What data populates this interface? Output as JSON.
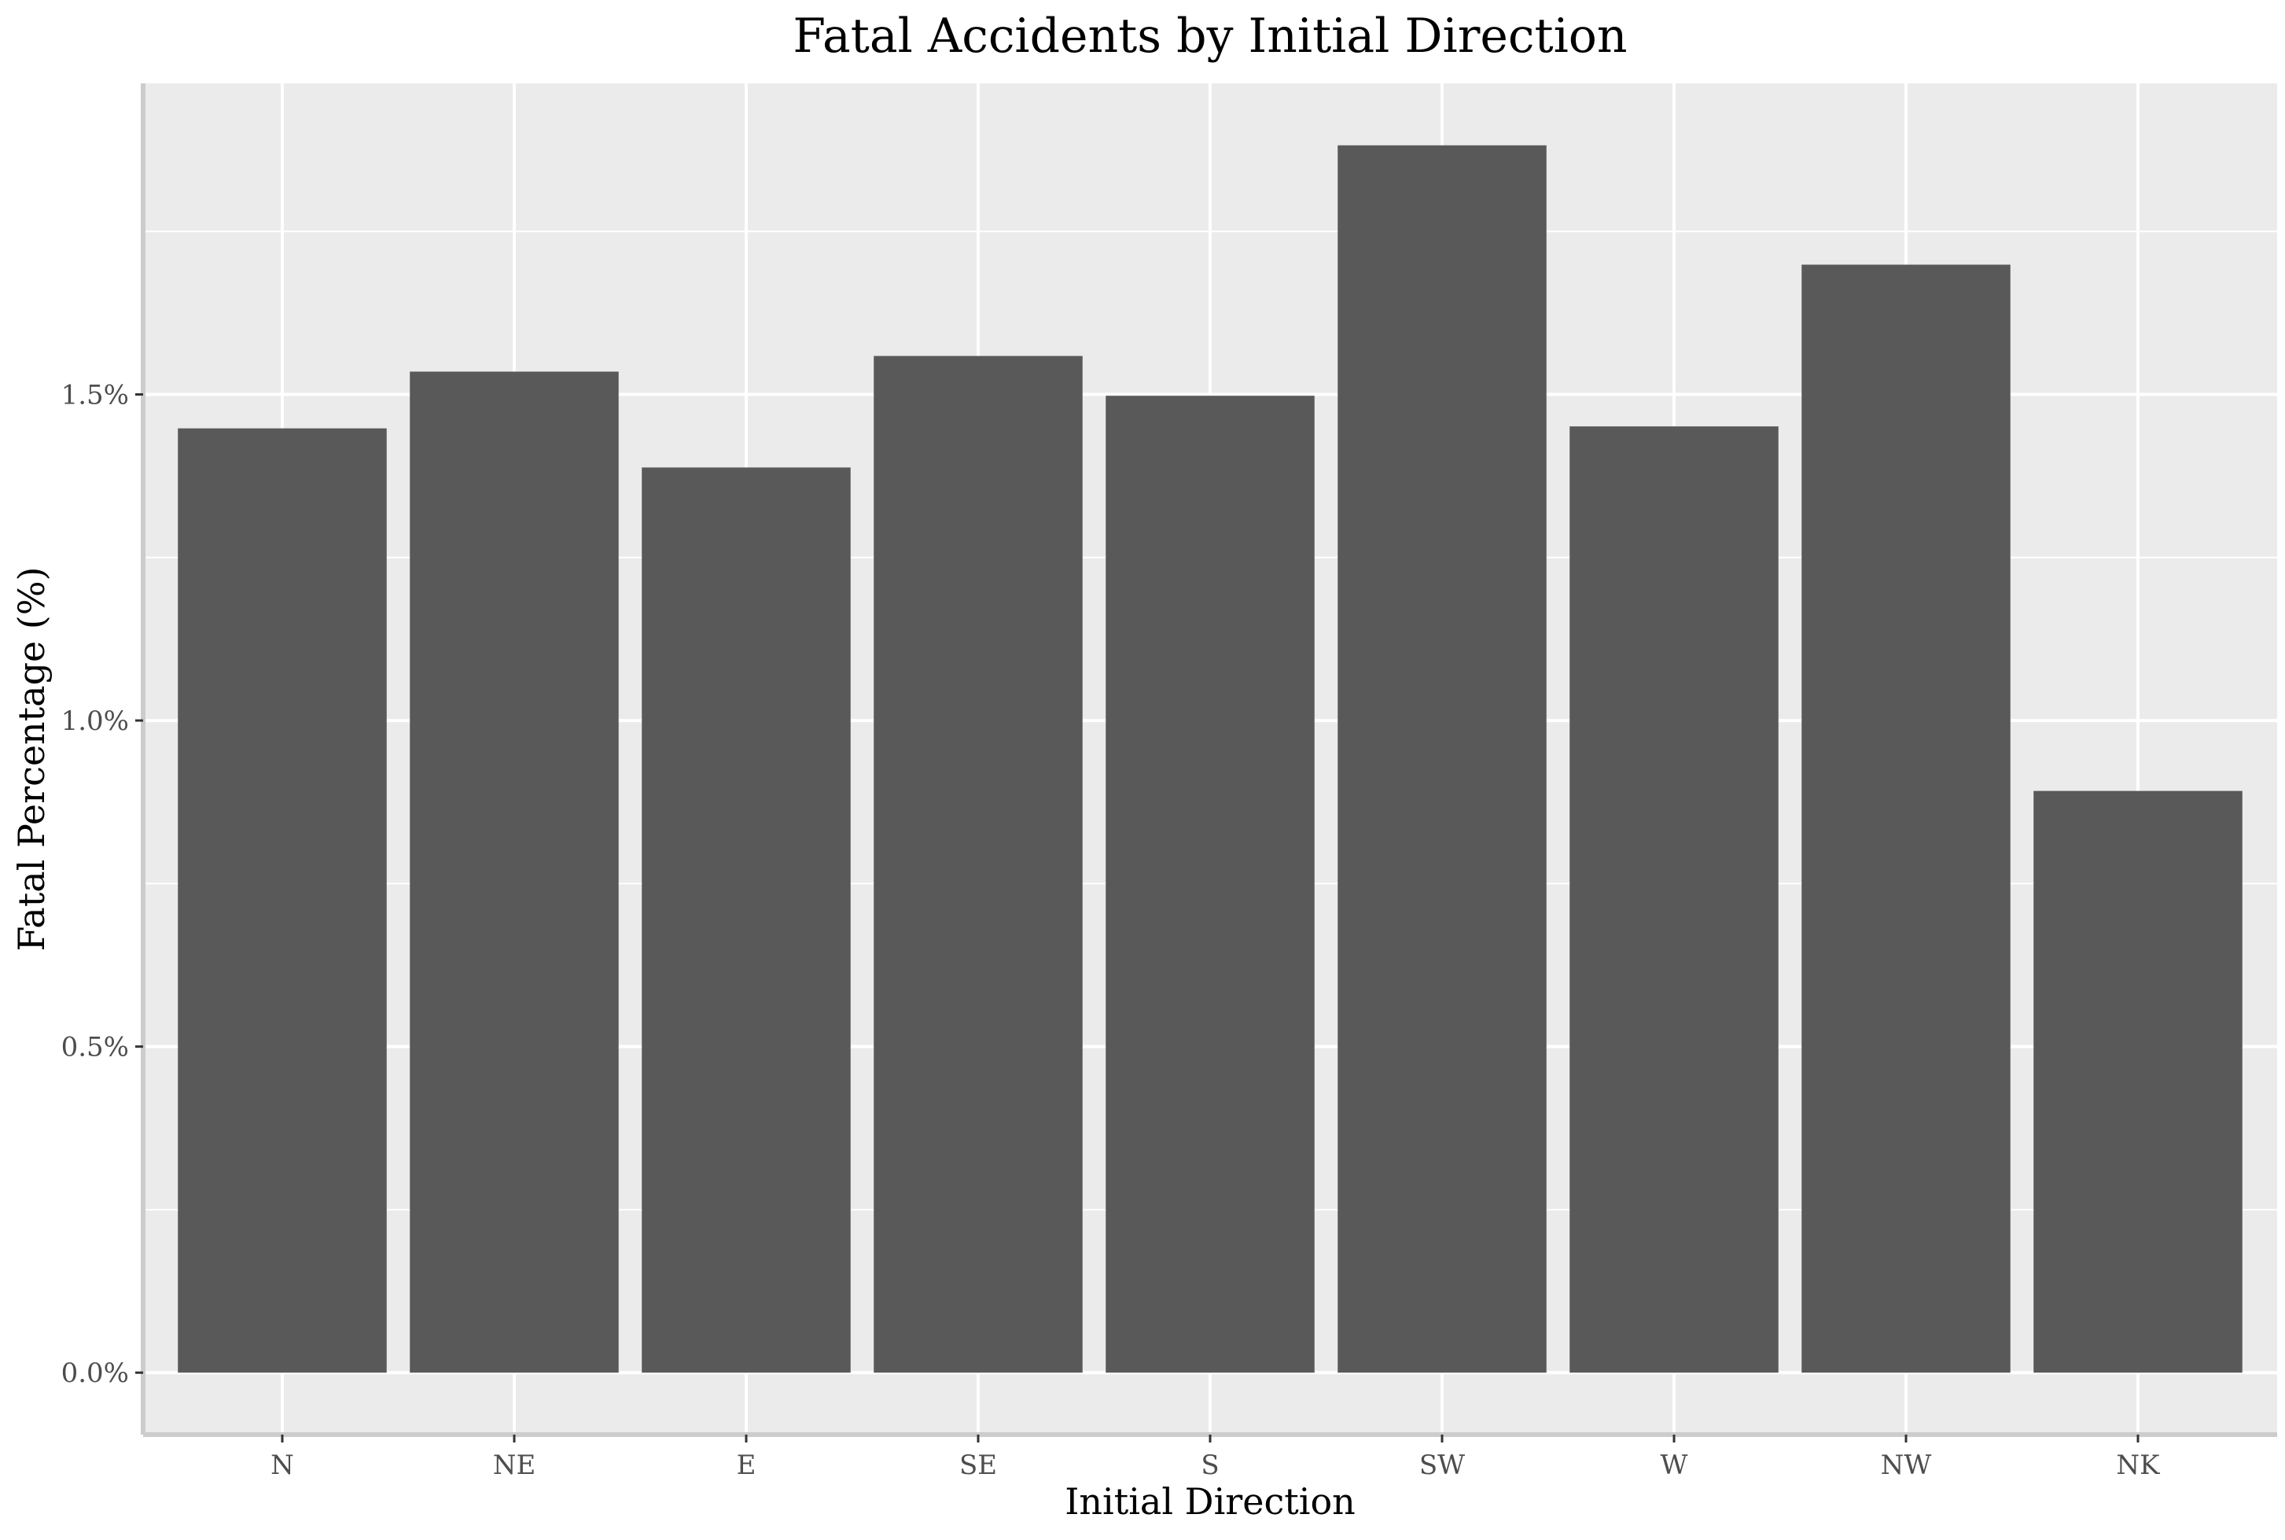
{
  "chart_data": {
    "type": "bar",
    "title": "Fatal Accidents by Initial Direction",
    "xlabel": "Initial Direction",
    "ylabel": "Fatal Percentage (%)",
    "categories": [
      "N",
      "NE",
      "E",
      "SE",
      "S",
      "SW",
      "W",
      "NW",
      "NK"
    ],
    "values": [
      1.448,
      1.535,
      1.388,
      1.559,
      1.498,
      1.882,
      1.451,
      1.699,
      0.892
    ],
    "yticks": [
      0.0,
      0.5,
      1.0,
      1.5
    ],
    "ytick_labels": [
      "0.0%",
      "0.5%",
      "1.0%",
      "1.5%"
    ],
    "ylim": [
      -0.095,
      1.977
    ],
    "grid": true,
    "legend": "none",
    "colors": {
      "bar": "#595959",
      "panel": "#ebebeb",
      "grid": "#ffffff",
      "axis_line": "#cccccc",
      "tick_text": "#4d4d4d"
    }
  }
}
